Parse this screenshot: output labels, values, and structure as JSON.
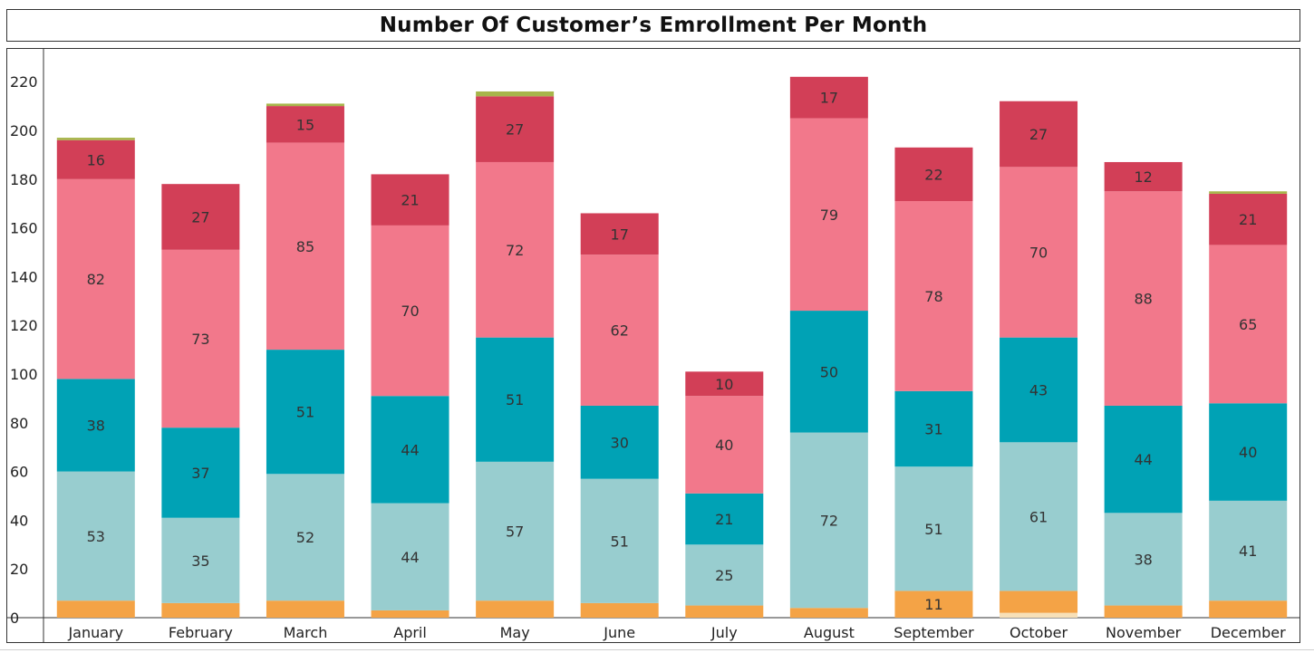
{
  "chart_data": {
    "type": "bar",
    "stacked": true,
    "title": "Number Of Customer’s Emrollment Per Month",
    "xlabel": "",
    "ylabel": "",
    "ylim": [
      0,
      233
    ],
    "yticks": [
      0,
      20,
      40,
      60,
      80,
      100,
      120,
      140,
      160,
      180,
      200,
      220
    ],
    "categories": [
      "January",
      "February",
      "March",
      "April",
      "May",
      "June",
      "July",
      "August",
      "September",
      "October",
      "November",
      "December"
    ],
    "series": [
      {
        "color": "#f7e0b8",
        "values": [
          0,
          0,
          0,
          0,
          0,
          0,
          0,
          0,
          0,
          2,
          0,
          0
        ],
        "labels": [
          null,
          null,
          null,
          null,
          null,
          null,
          null,
          null,
          null,
          null,
          null,
          null
        ]
      },
      {
        "color": "#f4a346",
        "values": [
          7,
          6,
          7,
          3,
          7,
          6,
          5,
          4,
          11,
          9,
          5,
          7
        ],
        "labels": [
          null,
          null,
          null,
          null,
          null,
          null,
          null,
          null,
          "11",
          null,
          null,
          null
        ]
      },
      {
        "color": "#98cdcf",
        "values": [
          53,
          35,
          52,
          44,
          57,
          51,
          25,
          72,
          51,
          61,
          38,
          41
        ],
        "labels": [
          "53",
          "35",
          "52",
          "44",
          "57",
          "51",
          "25",
          "72",
          "51",
          "61",
          "38",
          "41"
        ]
      },
      {
        "color": "#00a2b5",
        "values": [
          38,
          37,
          51,
          44,
          51,
          30,
          21,
          50,
          31,
          43,
          44,
          40
        ],
        "labels": [
          "38",
          "37",
          "51",
          "44",
          "51",
          "30",
          "21",
          "50",
          "31",
          "43",
          "44",
          "40"
        ]
      },
      {
        "color": "#f2788b",
        "values": [
          82,
          73,
          85,
          70,
          72,
          62,
          40,
          79,
          78,
          70,
          88,
          65
        ],
        "labels": [
          "82",
          "73",
          "85",
          "70",
          "72",
          "62",
          "40",
          "79",
          "78",
          "70",
          "88",
          "65"
        ]
      },
      {
        "color": "#d23f57",
        "values": [
          16,
          27,
          15,
          21,
          27,
          17,
          10,
          17,
          22,
          27,
          12,
          21
        ],
        "labels": [
          "16",
          "27",
          "15",
          "21",
          "27",
          "17",
          "10",
          "17",
          "22",
          "27",
          "12",
          "21"
        ]
      },
      {
        "color": "#a7b54a",
        "values": [
          1,
          0,
          1,
          0,
          2,
          0,
          0,
          0,
          0,
          0,
          0,
          1
        ],
        "labels": [
          null,
          null,
          null,
          null,
          null,
          null,
          null,
          null,
          null,
          null,
          null,
          null
        ]
      }
    ]
  }
}
